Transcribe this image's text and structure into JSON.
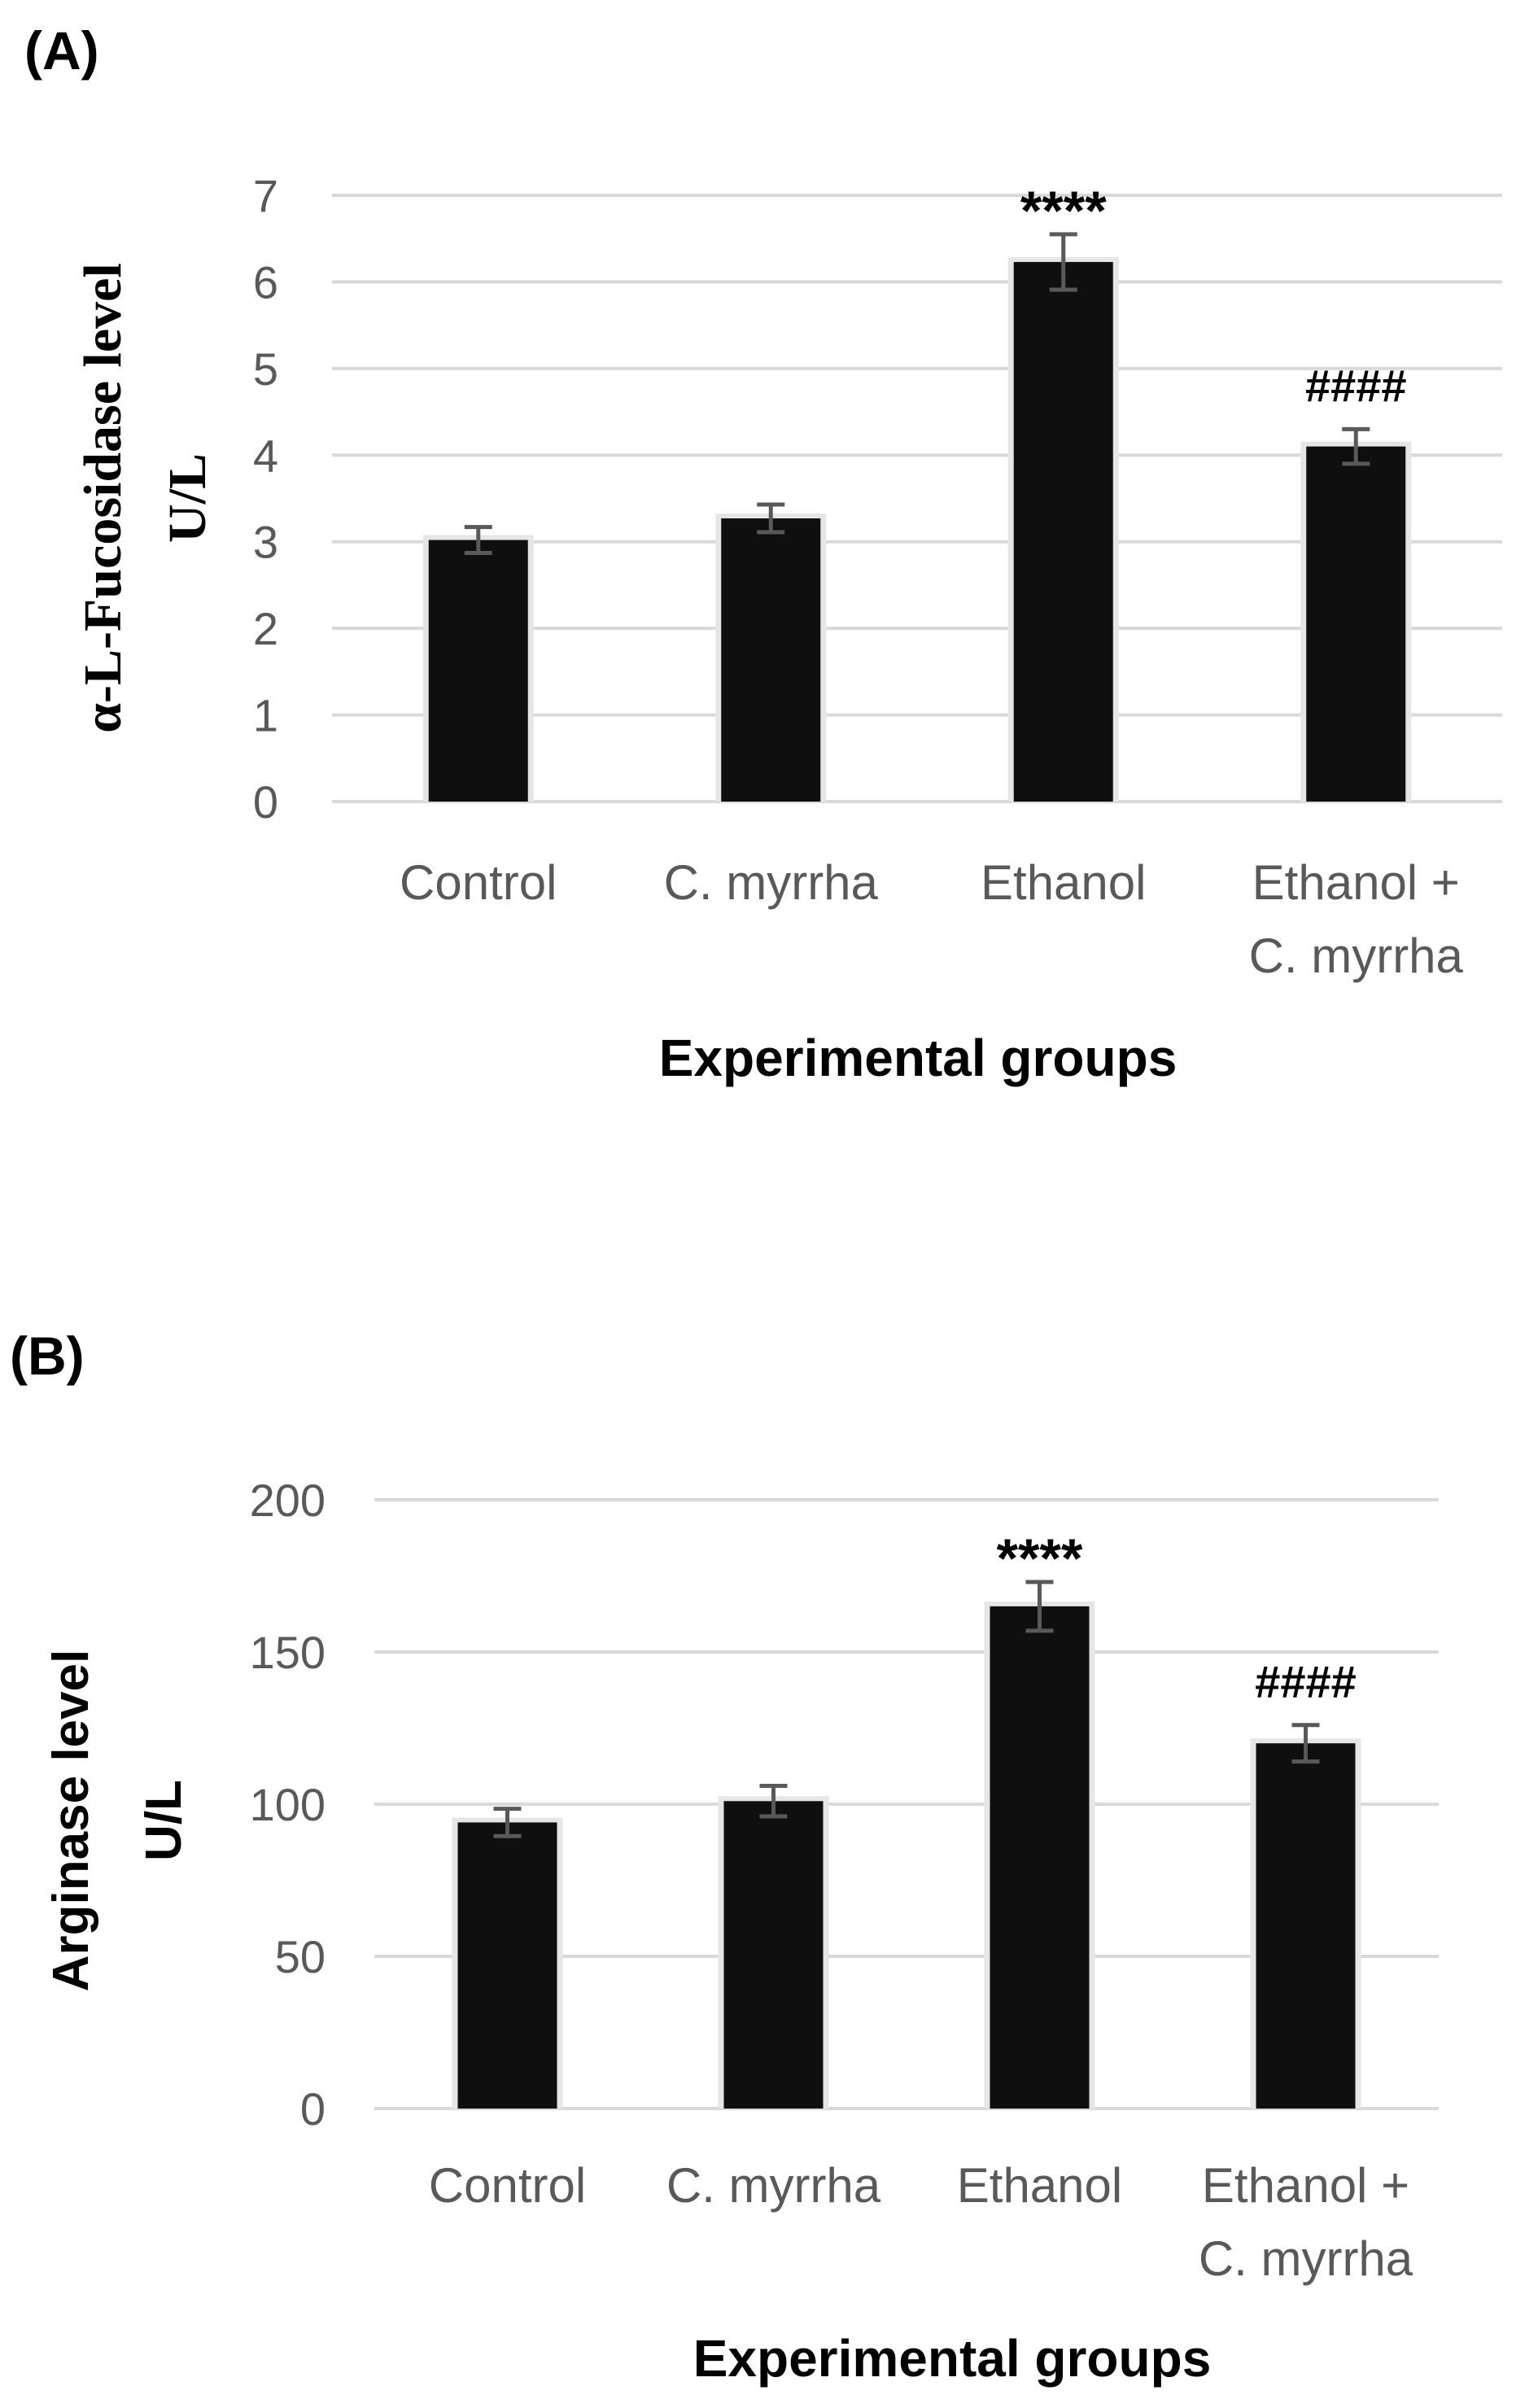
{
  "chart_data": [
    {
      "panel_label": "(A)",
      "type": "bar",
      "categories": [
        [
          "Control"
        ],
        [
          "C. myrrha"
        ],
        [
          "Ethanol"
        ],
        [
          "Ethanol +",
          "C. myrrha"
        ]
      ],
      "values": [
        3.02,
        3.27,
        6.23,
        4.1
      ],
      "errors": [
        0.15,
        0.16,
        0.32,
        0.2
      ],
      "annotations": [
        "",
        "",
        "****",
        "####"
      ],
      "xlabel": "Experimental groups",
      "ylabel": [
        "α-L-Fucosidase level",
        "U/L"
      ],
      "ylim": [
        0,
        7
      ],
      "yticks": [
        0,
        1,
        2,
        3,
        4,
        5,
        6,
        7
      ],
      "grid": true
    },
    {
      "panel_label": "(B)",
      "type": "bar",
      "categories": [
        [
          "Control"
        ],
        [
          "C. myrrha"
        ],
        [
          "Ethanol"
        ],
        [
          "Ethanol +",
          "C. myrrha"
        ]
      ],
      "values": [
        94,
        101,
        165,
        120
      ],
      "errors": [
        4.5,
        5,
        8,
        6
      ],
      "annotations": [
        "",
        "",
        "****",
        "####"
      ],
      "xlabel": "Experimental groups",
      "ylabel": [
        "Arginase level",
        "U/L"
      ],
      "ylim": [
        0,
        200
      ],
      "yticks": [
        0,
        50,
        100,
        150,
        200
      ],
      "grid": true
    }
  ],
  "colors": {
    "bar": "#0f0f0f",
    "grid": "#d9d9d9",
    "error": "#595959",
    "tick_text": "#595959"
  }
}
